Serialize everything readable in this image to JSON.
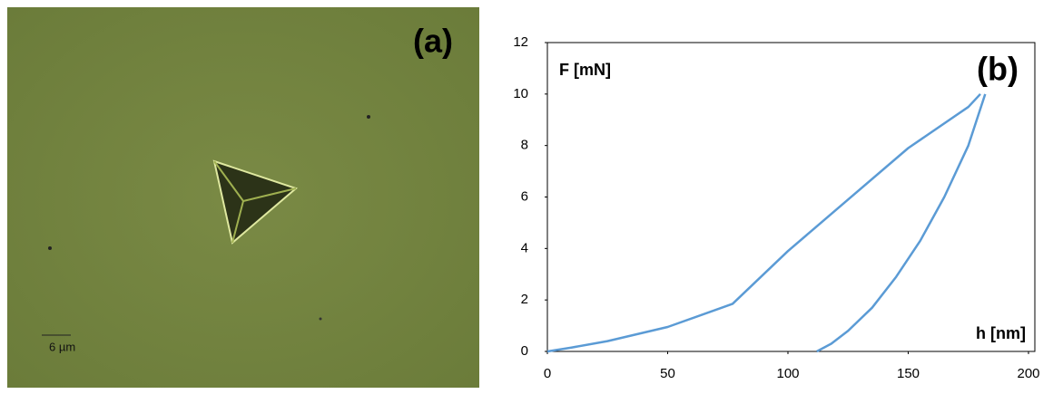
{
  "image": {
    "label": "(a)",
    "scale_bar": "6 µm"
  },
  "chart_data": {
    "type": "line",
    "label": "(b)",
    "y_label": "F [mN]",
    "x_label": "h [nm]",
    "series": [
      {
        "color": "#5b9bd5",
        "x": [
          0,
          10,
          25,
          50,
          77,
          100,
          125,
          150,
          175,
          180
        ],
        "values": [
          0,
          0.15,
          0.4,
          0.95,
          1.85,
          3.9,
          5.9,
          7.9,
          9.5,
          10
        ]
      },
      {
        "color": "#5b9bd5",
        "x": [
          182,
          175,
          165,
          155,
          145,
          135,
          125,
          118,
          112
        ],
        "values": [
          10,
          8,
          6,
          4.3,
          2.9,
          1.7,
          0.8,
          0.3,
          0
        ]
      }
    ],
    "xlim": [
      0,
      200
    ],
    "xticks": [
      0,
      50,
      100,
      150,
      200
    ],
    "ylim": [
      0,
      12
    ],
    "yticks": [
      0,
      2,
      4,
      6,
      8,
      10,
      12
    ]
  }
}
